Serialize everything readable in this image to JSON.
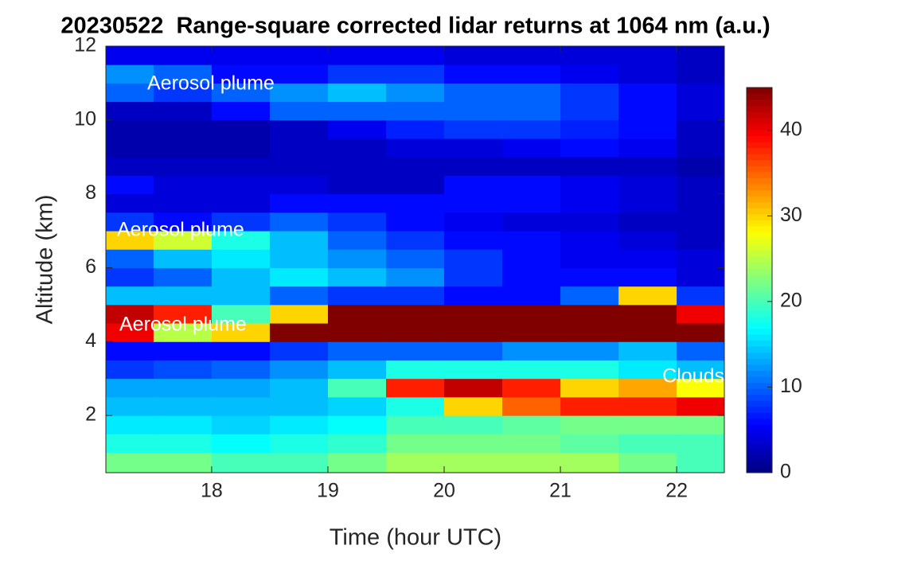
{
  "chart_data": {
    "type": "heatmap",
    "title": "20230522  Range-square corrected lidar returns at 1064 nm (a.u.)",
    "xlabel": "Time (hour UTC)",
    "ylabel": "Altitude (km)",
    "xlim": [
      17.09,
      22.41
    ],
    "ylim": [
      0.45,
      12
    ],
    "xticks": [
      18,
      19,
      20,
      21,
      22
    ],
    "yticks": [
      2,
      4,
      6,
      8,
      10,
      12
    ],
    "x_edges": [
      17.09,
      17.5,
      18,
      18.5,
      19,
      19.5,
      20,
      20.5,
      21,
      21.5,
      22,
      22.41
    ],
    "y_edges": [
      0.45,
      1,
      1.5,
      2,
      2.5,
      3,
      3.5,
      4,
      4.5,
      5,
      5.5,
      6,
      6.5,
      7,
      7.5,
      8,
      8.5,
      9,
      9.5,
      10,
      10.5,
      11,
      11.5,
      12
    ],
    "z": [
      [
        22,
        22,
        20,
        20,
        22,
        24,
        24,
        24,
        24,
        22,
        20
      ],
      [
        18,
        18,
        17,
        18,
        19,
        22,
        22,
        22,
        21,
        20,
        20
      ],
      [
        16,
        16,
        15,
        16,
        17,
        20,
        20,
        21,
        22,
        22,
        22
      ],
      [
        14,
        14,
        14,
        14,
        15,
        18,
        30,
        35,
        38,
        38,
        40
      ],
      [
        13,
        13,
        13,
        14,
        20,
        38,
        42,
        38,
        30,
        32,
        28
      ],
      [
        8,
        9,
        10,
        12,
        14,
        18,
        18,
        18,
        18,
        16,
        14
      ],
      [
        6,
        6,
        6,
        8,
        10,
        10,
        10,
        12,
        12,
        14,
        10
      ],
      [
        40,
        25,
        30,
        45,
        45,
        45,
        45,
        45,
        45,
        45,
        45
      ],
      [
        42,
        38,
        20,
        30,
        45,
        45,
        45,
        45,
        45,
        45,
        40
      ],
      [
        14,
        14,
        14,
        10,
        8,
        8,
        6,
        6,
        10,
        30,
        8
      ],
      [
        8,
        10,
        14,
        16,
        14,
        12,
        8,
        6,
        6,
        6,
        4
      ],
      [
        10,
        14,
        16,
        14,
        12,
        10,
        8,
        6,
        5,
        5,
        4
      ],
      [
        30,
        26,
        18,
        14,
        10,
        8,
        6,
        6,
        5,
        4,
        3
      ],
      [
        8,
        6,
        8,
        10,
        8,
        6,
        5,
        4,
        4,
        3,
        3
      ],
      [
        4,
        4,
        4,
        6,
        6,
        6,
        6,
        6,
        5,
        4,
        3
      ],
      [
        6,
        4,
        4,
        4,
        3,
        3,
        6,
        6,
        5,
        4,
        3
      ],
      [
        3,
        3,
        3,
        3,
        3,
        3,
        3,
        3,
        3,
        3,
        2
      ],
      [
        2,
        2,
        2,
        3,
        3,
        4,
        4,
        5,
        6,
        5,
        3
      ],
      [
        2,
        2,
        2,
        3,
        5,
        7,
        8,
        8,
        7,
        6,
        3
      ],
      [
        3,
        3,
        6,
        10,
        10,
        10,
        10,
        10,
        8,
        6,
        4
      ],
      [
        10,
        8,
        10,
        12,
        14,
        12,
        10,
        10,
        8,
        6,
        4
      ],
      [
        12,
        10,
        6,
        6,
        8,
        8,
        6,
        6,
        5,
        4,
        3
      ],
      [
        5,
        5,
        5,
        5,
        5,
        5,
        4,
        4,
        4,
        4,
        3
      ]
    ],
    "colormap": "jet",
    "clim": [
      0,
      45
    ],
    "cticks": [
      0,
      10,
      20,
      30,
      40
    ],
    "annotations": [
      "Aerosol plume",
      "Aerosol plume",
      "Aerosol plume",
      "Clouds"
    ],
    "annotation_color": "#ffffff"
  }
}
